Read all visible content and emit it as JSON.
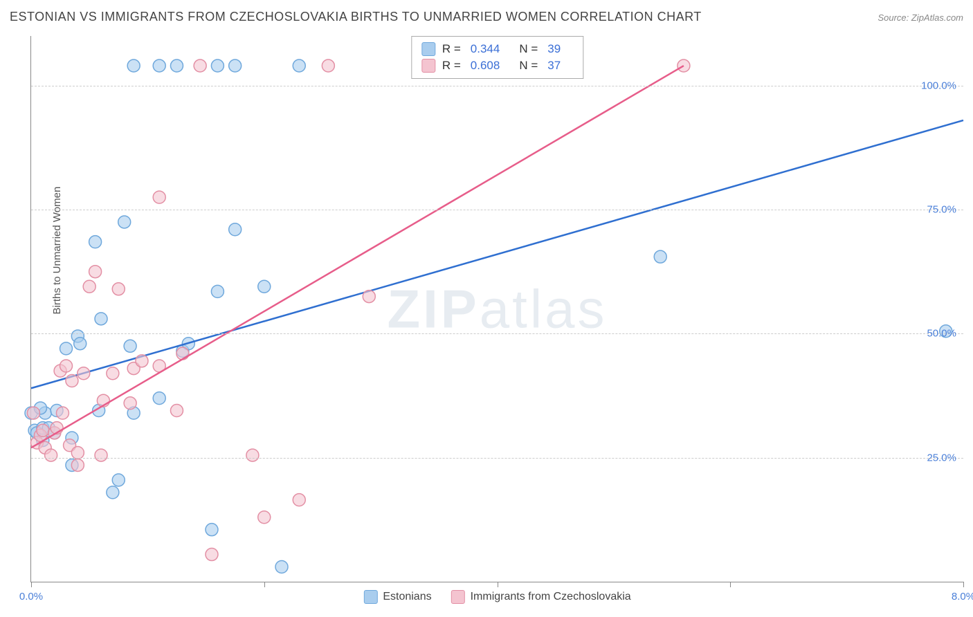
{
  "header": {
    "title": "ESTONIAN VS IMMIGRANTS FROM CZECHOSLOVAKIA BIRTHS TO UNMARRIED WOMEN CORRELATION CHART",
    "source": "Source: ZipAtlas.com"
  },
  "ylabel": "Births to Unmarried Women",
  "watermark": {
    "bold": "ZIP",
    "rest": "atlas"
  },
  "chart": {
    "type": "scatter",
    "xlim": [
      0.0,
      8.0
    ],
    "ylim": [
      0.0,
      110.0
    ],
    "xticks": [
      0.0,
      2.0,
      4.0,
      6.0,
      8.0
    ],
    "xtick_labels": [
      "0.0%",
      "",
      "",
      "",
      "8.0%"
    ],
    "yticks": [
      25.0,
      50.0,
      75.0,
      100.0
    ],
    "ytick_labels": [
      "25.0%",
      "50.0%",
      "75.0%",
      "100.0%"
    ],
    "grid_color": "#cccccc",
    "axis_color": "#888888",
    "background_color": "#ffffff",
    "label_color": "#4a7fd8",
    "series": [
      {
        "name": "Estonians",
        "color_fill": "#a9cdee",
        "color_stroke": "#6fa8dc",
        "line_color": "#2f6fd0",
        "marker_radius": 9,
        "marker_opacity": 0.6,
        "R": "0.344",
        "N": "39",
        "trend": {
          "x1": 0.0,
          "y1": 39.0,
          "x2": 8.0,
          "y2": 93.0
        },
        "points": [
          [
            0.0,
            34.0
          ],
          [
            0.03,
            30.5
          ],
          [
            0.05,
            30.0
          ],
          [
            0.1,
            31.0
          ],
          [
            0.1,
            28.5
          ],
          [
            0.12,
            34.0
          ],
          [
            0.08,
            35.0
          ],
          [
            0.15,
            31.0
          ],
          [
            0.2,
            30.0
          ],
          [
            0.22,
            34.5
          ],
          [
            0.3,
            47.0
          ],
          [
            0.35,
            23.5
          ],
          [
            0.35,
            29.0
          ],
          [
            0.4,
            49.5
          ],
          [
            0.42,
            48.0
          ],
          [
            0.55,
            68.5
          ],
          [
            0.58,
            34.5
          ],
          [
            0.6,
            53.0
          ],
          [
            0.7,
            18.0
          ],
          [
            0.75,
            20.5
          ],
          [
            0.8,
            72.5
          ],
          [
            0.85,
            47.5
          ],
          [
            0.88,
            34.0
          ],
          [
            0.88,
            104.0
          ],
          [
            1.1,
            104.0
          ],
          [
            1.1,
            37.0
          ],
          [
            1.25,
            104.0
          ],
          [
            1.3,
            46.5
          ],
          [
            1.35,
            48.0
          ],
          [
            1.55,
            10.5
          ],
          [
            1.6,
            104.0
          ],
          [
            1.6,
            58.5
          ],
          [
            1.75,
            71.0
          ],
          [
            1.75,
            104.0
          ],
          [
            2.0,
            59.5
          ],
          [
            2.15,
            3.0
          ],
          [
            2.3,
            104.0
          ],
          [
            5.4,
            65.5
          ],
          [
            7.85,
            50.5
          ]
        ]
      },
      {
        "name": "Immigrants from Czechoslovakia",
        "color_fill": "#f4c4d0",
        "color_stroke": "#e38fa4",
        "line_color": "#e75d8a",
        "marker_radius": 9,
        "marker_opacity": 0.6,
        "R": "0.608",
        "N": "37",
        "trend": {
          "x1": 0.0,
          "y1": 27.0,
          "x2": 5.6,
          "y2": 104.0
        },
        "points": [
          [
            0.02,
            34.0
          ],
          [
            0.05,
            28.0
          ],
          [
            0.08,
            29.5
          ],
          [
            0.1,
            30.5
          ],
          [
            0.12,
            27.0
          ],
          [
            0.17,
            25.5
          ],
          [
            0.2,
            30.0
          ],
          [
            0.22,
            31.0
          ],
          [
            0.25,
            42.5
          ],
          [
            0.27,
            34.0
          ],
          [
            0.3,
            43.5
          ],
          [
            0.33,
            27.5
          ],
          [
            0.35,
            40.5
          ],
          [
            0.4,
            26.0
          ],
          [
            0.4,
            23.5
          ],
          [
            0.45,
            42.0
          ],
          [
            0.5,
            59.5
          ],
          [
            0.55,
            62.5
          ],
          [
            0.6,
            25.5
          ],
          [
            0.62,
            36.5
          ],
          [
            0.7,
            42.0
          ],
          [
            0.75,
            59.0
          ],
          [
            0.85,
            36.0
          ],
          [
            0.88,
            43.0
          ],
          [
            0.95,
            44.5
          ],
          [
            1.1,
            77.5
          ],
          [
            1.1,
            43.5
          ],
          [
            1.25,
            34.5
          ],
          [
            1.3,
            46.0
          ],
          [
            1.45,
            104.0
          ],
          [
            1.55,
            5.5
          ],
          [
            1.9,
            25.5
          ],
          [
            2.0,
            13.0
          ],
          [
            2.3,
            16.5
          ],
          [
            2.55,
            104.0
          ],
          [
            2.9,
            57.5
          ],
          [
            5.6,
            104.0
          ]
        ]
      }
    ]
  },
  "legend_bottom": [
    {
      "label": "Estonians",
      "fill": "#a9cdee",
      "stroke": "#6fa8dc"
    },
    {
      "label": "Immigrants from Czechoslovakia",
      "fill": "#f4c4d0",
      "stroke": "#e38fa4"
    }
  ]
}
